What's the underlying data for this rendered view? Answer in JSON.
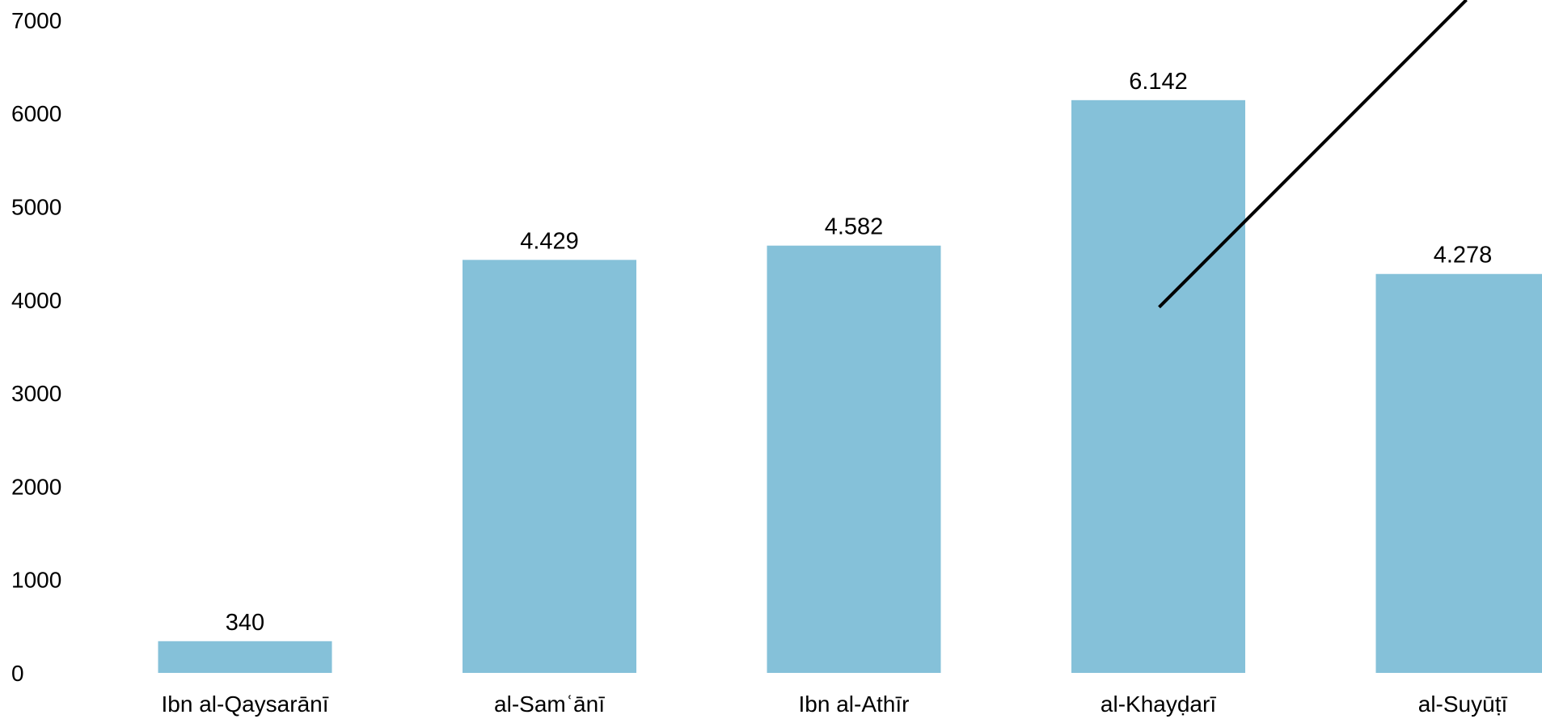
{
  "chart_data": {
    "type": "bar",
    "title": "",
    "xlabel": "",
    "ylabel": "",
    "categories": [
      "Ibn al-Qaysarānī",
      "al-Samʿānī",
      "Ibn al-Athīr",
      "al-Khayḍarī",
      "al-Suyūṭī"
    ],
    "values": [
      340,
      4429,
      4582,
      6142,
      4278
    ],
    "data_labels": [
      "340",
      "4.429",
      "4.582",
      "6.142",
      "4.278"
    ],
    "yticks": [
      "0",
      "1000",
      "2000",
      "3000",
      "4000",
      "5000",
      "6000",
      "7000"
    ],
    "ylim": [
      0,
      7000
    ],
    "grid": false,
    "legend": "none",
    "bar_color": "#85c1d9",
    "annotation_line": {
      "from": {
        "category": "al-Khayḍarī",
        "y": 4000
      },
      "direction": "up-right",
      "color": "#000000"
    }
  }
}
